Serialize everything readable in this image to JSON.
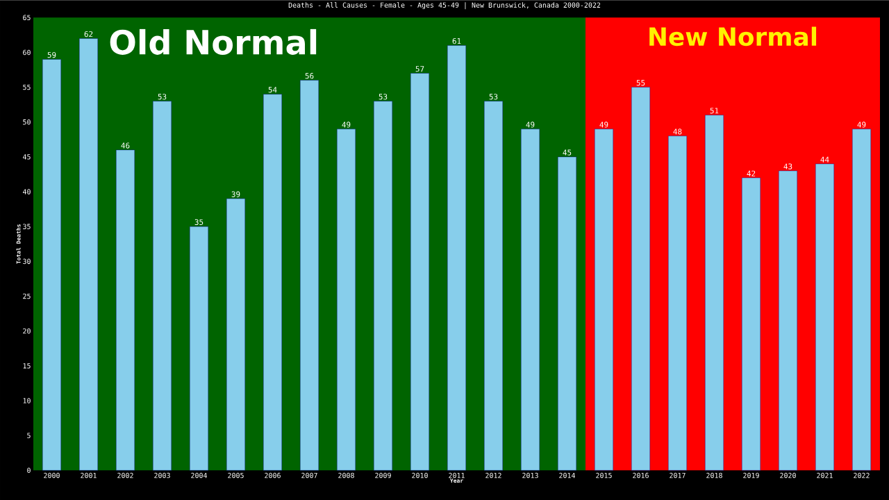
{
  "chart_data": {
    "type": "bar",
    "title": "Deaths - All Causes - Female - Ages 45-49 | New Brunswick, Canada 2000-2022",
    "xlabel": "Year",
    "ylabel": "Total Deaths",
    "categories": [
      "2000",
      "2001",
      "2002",
      "2003",
      "2004",
      "2005",
      "2006",
      "2007",
      "2008",
      "2009",
      "2010",
      "2011",
      "2012",
      "2013",
      "2014",
      "2015",
      "2016",
      "2017",
      "2018",
      "2019",
      "2020",
      "2021",
      "2022"
    ],
    "values": [
      59,
      62,
      46,
      53,
      35,
      39,
      54,
      56,
      49,
      53,
      57,
      61,
      53,
      49,
      45,
      49,
      55,
      48,
      51,
      42,
      43,
      44,
      49
    ],
    "color": "#87ceeb",
    "data_labels": true,
    "ylim": [
      0,
      65
    ],
    "yticks": [
      0,
      5,
      10,
      15,
      20,
      25,
      30,
      35,
      40,
      45,
      50,
      55,
      60,
      65
    ],
    "grid": false,
    "bands": [
      {
        "axis": "x",
        "from": "2000",
        "to": "2014",
        "label": "Old Normal",
        "color": "#006400"
      },
      {
        "axis": "x",
        "from": "2015",
        "to": "2022",
        "label": "New Normal",
        "color": "#ff0000"
      }
    ]
  }
}
